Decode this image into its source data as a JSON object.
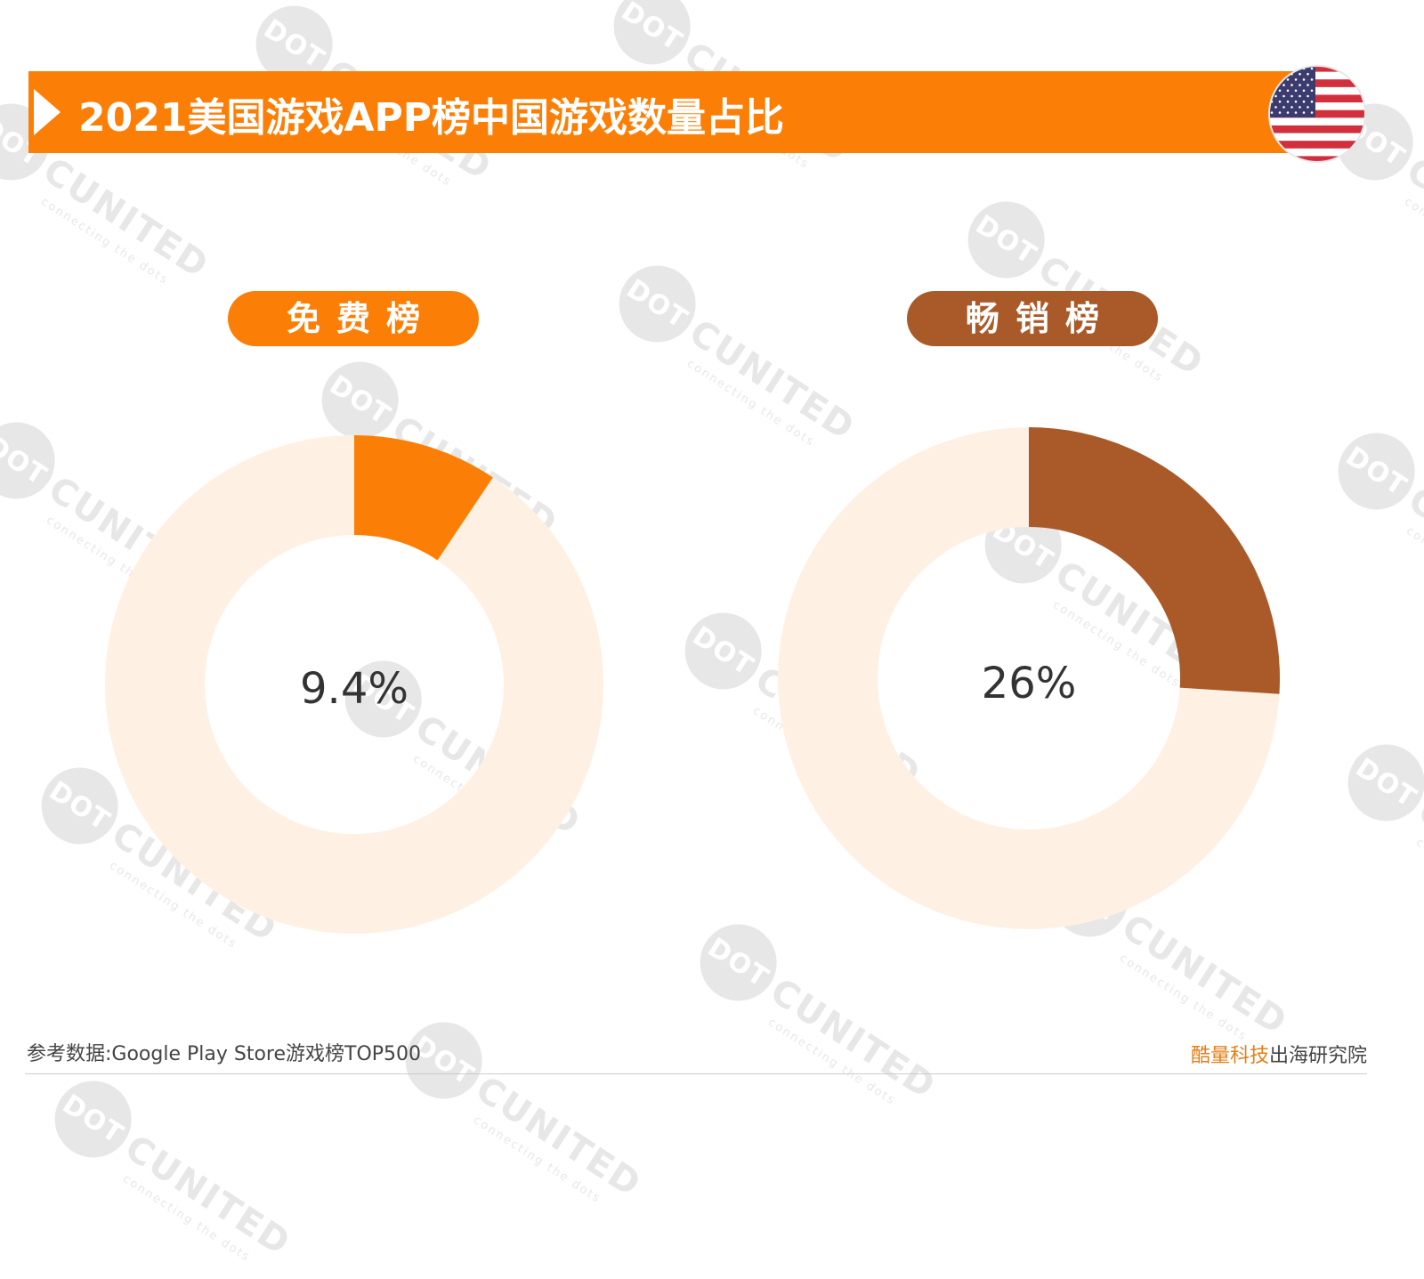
{
  "header": {
    "title": "2021美国游戏APP榜中国游戏数量占比"
  },
  "colors": {
    "accent": "#fb7f07",
    "grossing": "#aa5a28",
    "track": "#fff0e4"
  },
  "chart_data": [
    {
      "type": "pie",
      "title": "免费榜",
      "center_label": "9.4%",
      "values": [
        9.4,
        90.6
      ],
      "color": "#fb7f07"
    },
    {
      "type": "pie",
      "title": "畅销榜",
      "center_label": "26%",
      "values": [
        26,
        74
      ],
      "color": "#aa5a28"
    }
  ],
  "footer": {
    "source": "参考数据:Google Play Store游戏榜TOP500",
    "brand_highlight": "酷量科技",
    "brand_rest": "出海研究院"
  },
  "watermark": {
    "dot": "DOT",
    "united": "CUNITED",
    "tagline": "connecting the dots"
  }
}
